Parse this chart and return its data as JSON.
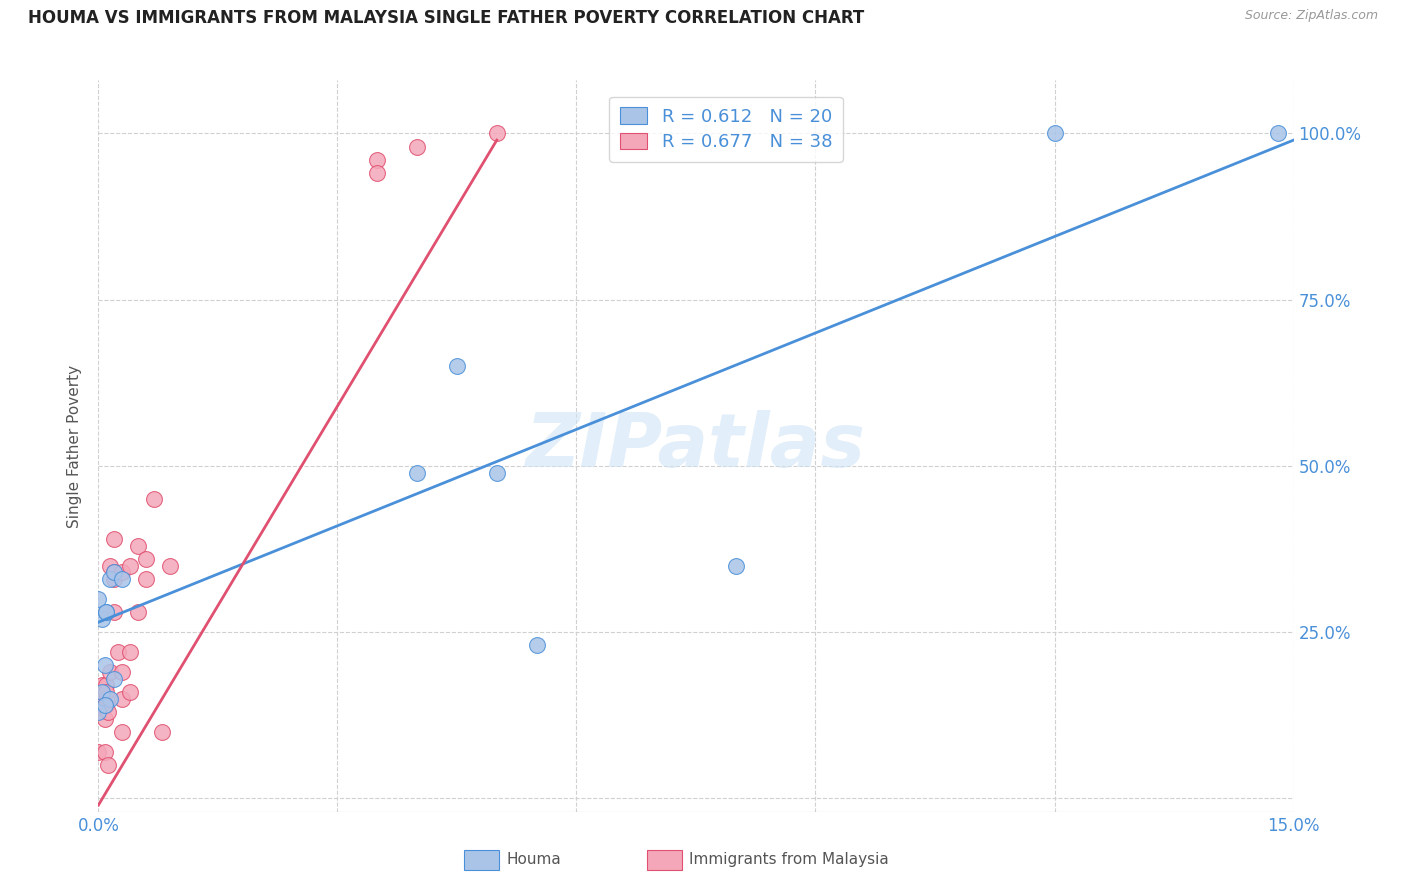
{
  "title": "HOUMA VS IMMIGRANTS FROM MALAYSIA SINGLE FATHER POVERTY CORRELATION CHART",
  "source": "Source: ZipAtlas.com",
  "ylabel": "Single Father Poverty",
  "xlim": [
    0.0,
    0.15
  ],
  "ylim": [
    -0.02,
    1.08
  ],
  "xticks": [
    0.0,
    0.03,
    0.06,
    0.09,
    0.12,
    0.15
  ],
  "xtick_labels": [
    "0.0%",
    "",
    "",
    "",
    "",
    "15.0%"
  ],
  "yticks": [
    0.0,
    0.25,
    0.5,
    0.75,
    1.0
  ],
  "ytick_labels": [
    "",
    "25.0%",
    "50.0%",
    "75.0%",
    "100.0%"
  ],
  "houma_R": 0.612,
  "houma_N": 20,
  "malaysia_R": 0.677,
  "malaysia_N": 38,
  "houma_color": "#aac4e8",
  "houma_line_color": "#4a90d9",
  "malaysia_color": "#f4a7b9",
  "malaysia_line_color": "#e05070",
  "houma_scatter_x": [
    0.0005,
    0.001,
    0.0008,
    0.0,
    0.0005,
    0.0015,
    0.0,
    0.0008,
    0.0015,
    0.001,
    0.002,
    0.003,
    0.002,
    0.04,
    0.05,
    0.045,
    0.055,
    0.08,
    0.12,
    0.148
  ],
  "houma_scatter_y": [
    0.27,
    0.28,
    0.2,
    0.3,
    0.16,
    0.15,
    0.13,
    0.14,
    0.33,
    0.28,
    0.34,
    0.33,
    0.18,
    0.49,
    0.49,
    0.65,
    0.23,
    0.35,
    1.0,
    1.0
  ],
  "malaysia_scatter_x": [
    0.0,
    0.0,
    0.0,
    0.0005,
    0.0005,
    0.0005,
    0.0008,
    0.0008,
    0.001,
    0.001,
    0.001,
    0.0012,
    0.0012,
    0.0015,
    0.0015,
    0.002,
    0.002,
    0.002,
    0.002,
    0.0025,
    0.003,
    0.003,
    0.003,
    0.003,
    0.004,
    0.004,
    0.004,
    0.005,
    0.005,
    0.006,
    0.006,
    0.007,
    0.008,
    0.009,
    0.035,
    0.035,
    0.04,
    0.05
  ],
  "malaysia_scatter_y": [
    0.15,
    0.13,
    0.07,
    0.15,
    0.14,
    0.17,
    0.12,
    0.07,
    0.17,
    0.16,
    0.14,
    0.13,
    0.05,
    0.19,
    0.35,
    0.34,
    0.28,
    0.39,
    0.33,
    0.22,
    0.19,
    0.34,
    0.15,
    0.1,
    0.35,
    0.22,
    0.16,
    0.28,
    0.38,
    0.36,
    0.33,
    0.45,
    0.1,
    0.35,
    0.96,
    0.94,
    0.98,
    1.0
  ],
  "houma_trend_x": [
    0.0,
    0.15
  ],
  "houma_trend_y": [
    0.265,
    0.99
  ],
  "malaysia_trend_x": [
    0.0,
    0.05
  ],
  "malaysia_trend_y": [
    -0.01,
    0.99
  ],
  "watermark": "ZIPatlas",
  "background_color": "#ffffff",
  "grid_color": "#d0d0d0"
}
